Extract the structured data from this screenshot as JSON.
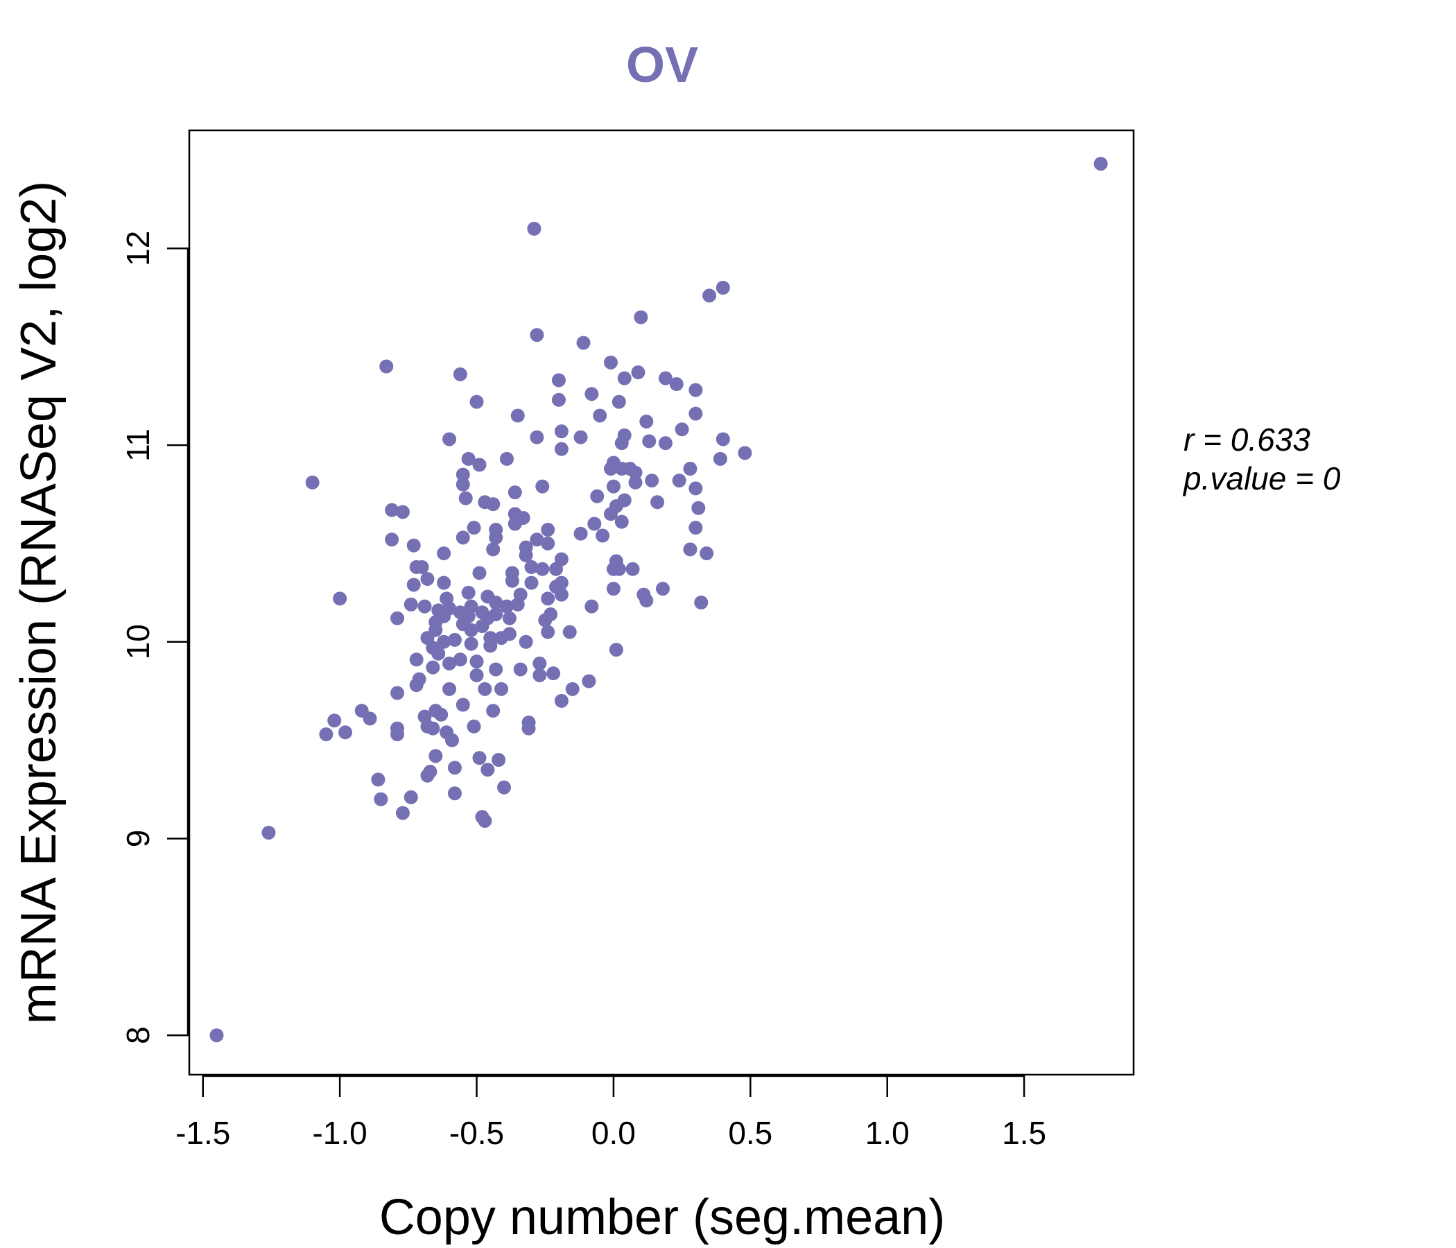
{
  "chart_data": {
    "type": "scatter",
    "title": "OV",
    "xlabel": "Copy number (seg.mean)",
    "ylabel": "mRNA Expression (RNASeq V2, log2)",
    "xlim": [
      -1.55,
      1.9
    ],
    "ylim": [
      7.8,
      12.6
    ],
    "xticks": [
      -1.5,
      -1.0,
      -0.5,
      0.0,
      0.5,
      1.0,
      1.5
    ],
    "xtick_labels": [
      "-1.5",
      "-1.0",
      "-0.5",
      "0.0",
      "0.5",
      "1.0",
      "1.5"
    ],
    "yticks": [
      8,
      9,
      10,
      11,
      12
    ],
    "ytick_labels": [
      "8",
      "9",
      "10",
      "11",
      "12"
    ],
    "point_color": "#7570b3",
    "stats": {
      "r_label": "r = 0.633",
      "p_label": "p.value = 0"
    },
    "points": [
      [
        -1.45,
        8.0
      ],
      [
        -1.26,
        9.03
      ],
      [
        -1.1,
        10.81
      ],
      [
        -1.0,
        10.22
      ],
      [
        -1.05,
        9.53
      ],
      [
        -1.02,
        9.6
      ],
      [
        -0.98,
        9.54
      ],
      [
        -0.92,
        9.65
      ],
      [
        -0.89,
        9.61
      ],
      [
        -0.83,
        11.4
      ],
      [
        -0.81,
        10.67
      ],
      [
        -0.81,
        10.52
      ],
      [
        -0.77,
        10.66
      ],
      [
        -0.79,
        10.12
      ],
      [
        -0.79,
        9.74
      ],
      [
        -0.79,
        9.53
      ],
      [
        -0.79,
        9.56
      ],
      [
        -0.85,
        9.2
      ],
      [
        -0.86,
        9.3
      ],
      [
        -0.77,
        9.13
      ],
      [
        -0.73,
        10.49
      ],
      [
        -0.72,
        10.38
      ],
      [
        -0.73,
        10.29
      ],
      [
        -0.74,
        10.19
      ],
      [
        -0.7,
        10.38
      ],
      [
        -0.68,
        10.32
      ],
      [
        -0.69,
        10.18
      ],
      [
        -0.68,
        10.02
      ],
      [
        -0.66,
        9.97
      ],
      [
        -0.72,
        9.91
      ],
      [
        -0.72,
        9.78
      ],
      [
        -0.71,
        9.81
      ],
      [
        -0.69,
        9.62
      ],
      [
        -0.68,
        9.57
      ],
      [
        -0.66,
        9.56
      ],
      [
        -0.68,
        9.32
      ],
      [
        -0.67,
        9.34
      ],
      [
        -0.74,
        9.21
      ],
      [
        -0.65,
        9.42
      ],
      [
        -0.65,
        9.65
      ],
      [
        -0.64,
        10.16
      ],
      [
        -0.65,
        10.1
      ],
      [
        -0.65,
        10.06
      ],
      [
        -0.64,
        9.94
      ],
      [
        -0.66,
        9.87
      ],
      [
        -0.63,
        9.63
      ],
      [
        -0.62,
        10.13
      ],
      [
        -0.62,
        10.0
      ],
      [
        -0.61,
        10.22
      ],
      [
        -0.62,
        10.3
      ],
      [
        -0.62,
        10.45
      ],
      [
        -0.6,
        11.03
      ],
      [
        -0.6,
        10.17
      ],
      [
        -0.6,
        9.89
      ],
      [
        -0.6,
        9.76
      ],
      [
        -0.61,
        9.54
      ],
      [
        -0.59,
        9.5
      ],
      [
        -0.58,
        9.36
      ],
      [
        -0.58,
        9.23
      ],
      [
        -0.58,
        10.01
      ],
      [
        -0.56,
        11.36
      ],
      [
        -0.55,
        10.85
      ],
      [
        -0.55,
        10.8
      ],
      [
        -0.54,
        10.73
      ],
      [
        -0.55,
        10.53
      ],
      [
        -0.56,
        10.15
      ],
      [
        -0.55,
        10.09
      ],
      [
        -0.56,
        9.91
      ],
      [
        -0.55,
        9.68
      ],
      [
        -0.53,
        10.25
      ],
      [
        -0.53,
        10.13
      ],
      [
        -0.52,
        10.06
      ],
      [
        -0.52,
        9.99
      ],
      [
        -0.53,
        10.93
      ],
      [
        -0.52,
        10.18
      ],
      [
        -0.51,
        10.58
      ],
      [
        -0.5,
        11.22
      ],
      [
        -0.5,
        9.9
      ],
      [
        -0.5,
        9.83
      ],
      [
        -0.51,
        9.57
      ],
      [
        -0.49,
        10.9
      ],
      [
        -0.49,
        10.35
      ],
      [
        -0.48,
        10.15
      ],
      [
        -0.48,
        10.08
      ],
      [
        -0.47,
        9.76
      ],
      [
        -0.49,
        9.41
      ],
      [
        -0.48,
        9.11
      ],
      [
        -0.47,
        9.09
      ],
      [
        -0.47,
        10.71
      ],
      [
        -0.46,
        10.23
      ],
      [
        -0.46,
        10.12
      ],
      [
        -0.45,
        10.02
      ],
      [
        -0.45,
        9.98
      ],
      [
        -0.46,
        9.35
      ],
      [
        -0.44,
        10.7
      ],
      [
        -0.44,
        10.47
      ],
      [
        -0.43,
        10.57
      ],
      [
        -0.43,
        10.53
      ],
      [
        -0.43,
        10.2
      ],
      [
        -0.43,
        10.14
      ],
      [
        -0.43,
        9.86
      ],
      [
        -0.44,
        9.65
      ],
      [
        -0.42,
        9.4
      ],
      [
        -0.41,
        10.02
      ],
      [
        -0.41,
        9.76
      ],
      [
        -0.4,
        9.26
      ],
      [
        -0.39,
        10.93
      ],
      [
        -0.39,
        10.18
      ],
      [
        -0.38,
        10.12
      ],
      [
        -0.38,
        10.04
      ],
      [
        -0.37,
        10.31
      ],
      [
        -0.37,
        10.35
      ],
      [
        -0.36,
        10.76
      ],
      [
        -0.36,
        10.65
      ],
      [
        -0.36,
        10.6
      ],
      [
        -0.35,
        11.15
      ],
      [
        -0.35,
        10.19
      ],
      [
        -0.34,
        10.24
      ],
      [
        -0.34,
        9.86
      ],
      [
        -0.33,
        10.63
      ],
      [
        -0.32,
        10.48
      ],
      [
        -0.32,
        10.44
      ],
      [
        -0.32,
        10.0
      ],
      [
        -0.31,
        9.59
      ],
      [
        -0.31,
        9.56
      ],
      [
        -0.3,
        10.38
      ],
      [
        -0.3,
        10.3
      ],
      [
        -0.29,
        12.1
      ],
      [
        -0.28,
        11.56
      ],
      [
        -0.28,
        11.04
      ],
      [
        -0.28,
        10.52
      ],
      [
        -0.27,
        9.89
      ],
      [
        -0.27,
        9.83
      ],
      [
        -0.26,
        10.79
      ],
      [
        -0.26,
        10.37
      ],
      [
        -0.25,
        10.11
      ],
      [
        -0.24,
        10.57
      ],
      [
        -0.24,
        10.5
      ],
      [
        -0.24,
        10.22
      ],
      [
        -0.24,
        10.05
      ],
      [
        -0.23,
        10.14
      ],
      [
        -0.22,
        9.84
      ],
      [
        -0.21,
        10.37
      ],
      [
        -0.21,
        10.28
      ],
      [
        -0.2,
        11.33
      ],
      [
        -0.2,
        11.23
      ],
      [
        -0.19,
        11.07
      ],
      [
        -0.19,
        10.98
      ],
      [
        -0.19,
        10.42
      ],
      [
        -0.19,
        10.3
      ],
      [
        -0.19,
        10.24
      ],
      [
        -0.19,
        9.7
      ],
      [
        -0.16,
        10.05
      ],
      [
        -0.15,
        9.76
      ],
      [
        -0.12,
        11.04
      ],
      [
        -0.12,
        10.55
      ],
      [
        -0.11,
        11.52
      ],
      [
        -0.09,
        9.8
      ],
      [
        -0.08,
        11.26
      ],
      [
        -0.08,
        10.18
      ],
      [
        -0.07,
        10.6
      ],
      [
        -0.06,
        10.74
      ],
      [
        -0.05,
        11.15
      ],
      [
        -0.04,
        10.54
      ],
      [
        -0.01,
        11.42
      ],
      [
        -0.01,
        10.88
      ],
      [
        -0.01,
        10.65
      ],
      [
        0.0,
        10.91
      ],
      [
        0.0,
        10.79
      ],
      [
        0.0,
        10.37
      ],
      [
        0.0,
        10.27
      ],
      [
        0.01,
        10.69
      ],
      [
        0.01,
        9.96
      ],
      [
        0.01,
        10.41
      ],
      [
        0.02,
        11.22
      ],
      [
        0.02,
        10.37
      ],
      [
        0.03,
        10.61
      ],
      [
        0.03,
        11.01
      ],
      [
        0.03,
        10.88
      ],
      [
        0.04,
        11.05
      ],
      [
        0.04,
        10.72
      ],
      [
        0.04,
        11.34
      ],
      [
        0.06,
        10.88
      ],
      [
        0.07,
        10.37
      ],
      [
        0.08,
        10.86
      ],
      [
        0.08,
        10.81
      ],
      [
        0.09,
        11.37
      ],
      [
        0.1,
        11.65
      ],
      [
        0.11,
        10.24
      ],
      [
        0.12,
        10.21
      ],
      [
        0.12,
        11.12
      ],
      [
        0.13,
        11.02
      ],
      [
        0.14,
        10.82
      ],
      [
        0.16,
        10.71
      ],
      [
        0.18,
        10.27
      ],
      [
        0.19,
        11.34
      ],
      [
        0.19,
        11.01
      ],
      [
        0.23,
        11.31
      ],
      [
        0.24,
        10.82
      ],
      [
        0.25,
        11.08
      ],
      [
        0.28,
        10.88
      ],
      [
        0.28,
        10.47
      ],
      [
        0.3,
        11.28
      ],
      [
        0.3,
        11.16
      ],
      [
        0.3,
        10.78
      ],
      [
        0.3,
        10.58
      ],
      [
        0.31,
        10.68
      ],
      [
        0.32,
        10.2
      ],
      [
        0.34,
        10.45
      ],
      [
        0.35,
        11.76
      ],
      [
        0.39,
        10.93
      ],
      [
        0.4,
        11.8
      ],
      [
        0.4,
        11.03
      ],
      [
        0.48,
        10.96
      ],
      [
        1.78,
        12.43
      ]
    ]
  }
}
